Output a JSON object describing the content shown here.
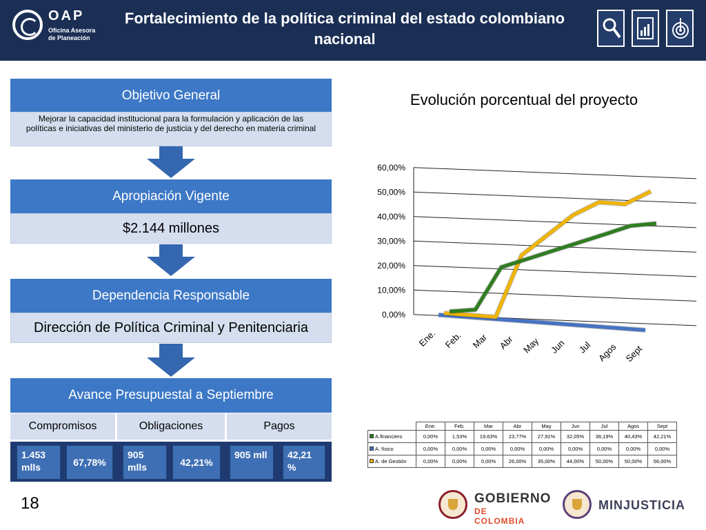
{
  "header": {
    "logo_title": "OAP",
    "logo_sub_1": "Oficina Asesora",
    "logo_sub_2": "de Planeación",
    "title_line1": "Fortalecimiento de la política criminal del estado colombiano",
    "title_line2": "nacional",
    "icons": [
      "magnifier-icon",
      "report-icon",
      "target-icon"
    ]
  },
  "objetivo": {
    "head": "Objetivo General",
    "body": "Mejorar la capacidad institucional para la formulación y aplicación de las políticas e iniciativas del ministerio de justicia y del derecho en materia criminal"
  },
  "apropiacion": {
    "head": "Apropiación Vigente",
    "body": "$2.144 millones"
  },
  "dependencia": {
    "head": "Dependencia Responsable",
    "body": "Dirección de Política Criminal y Penitenciaria"
  },
  "avance": {
    "head": "Avance Presupuestal a Septiembre",
    "cols": [
      "Compromisos",
      "Obligaciones",
      "Pagos"
    ],
    "vals": [
      {
        "amount": "1.453 mlls",
        "pct": "67,78%"
      },
      {
        "amount": "905 mlls",
        "pct": "42,21%"
      },
      {
        "amount": "905 mll",
        "pct": "42,21 %"
      }
    ]
  },
  "page_number": "18",
  "logos": {
    "gobierno_line1": "GOBIERNO",
    "gobierno_line2": "DE COLOMBIA",
    "minjusticia": "MINJUSTICIA"
  },
  "colors": {
    "header_bg": "#1b2f55",
    "box_blue": "#3d78c6",
    "box_light": "#d4deee",
    "financiero": "#2e7d1f",
    "fisico": "#4472c4",
    "gestion": "#f0b400"
  },
  "chart_data": {
    "type": "line",
    "title": "Evolución porcentual del proyecto",
    "categories": [
      "Ene.",
      "Feb.",
      "Mar",
      "Abr",
      "May",
      "Jun",
      "Jul",
      "Agos",
      "Sept"
    ],
    "ylim": [
      0,
      60
    ],
    "yticks": [
      "0,00%",
      "10,00%",
      "20,00%",
      "30,00%",
      "40,00%",
      "50,00%",
      "60,00%"
    ],
    "grid": true,
    "style": "3d-line",
    "series": [
      {
        "name": "A.financiero",
        "values": [
          0.0,
          1.53,
          19.63,
          23.77,
          27.91,
          32.05,
          36.19,
          40.43,
          42.21
        ],
        "labels": [
          "0,00%",
          "1,53%",
          "19,63%",
          "23,77%",
          "27,91%",
          "32,05%",
          "36,19%",
          "40,43%",
          "42,21%"
        ]
      },
      {
        "name": "A. físico",
        "values": [
          0,
          0,
          0,
          0,
          0,
          0,
          0,
          0,
          0
        ],
        "labels": [
          "0,00%",
          "0,00%",
          "0,00%",
          "0,00%",
          "0,00%",
          "0,00%",
          "0,00%",
          "0,00%",
          "0,00%"
        ]
      },
      {
        "name": "A. de Gestión",
        "values": [
          0,
          0,
          0,
          26,
          35,
          44,
          50,
          50,
          56
        ],
        "labels": [
          "0,00%",
          "0,00%",
          "0,00%",
          "26,00%",
          "35,00%",
          "44,00%",
          "50,00%",
          "50,00%",
          "56,00%"
        ]
      }
    ]
  }
}
